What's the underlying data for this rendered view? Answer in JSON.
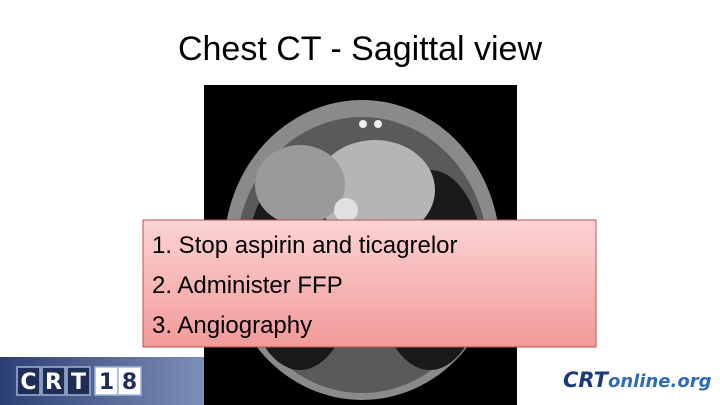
{
  "title": "Chest CT - Sagittal view",
  "callout": {
    "items": [
      "1. Stop aspirin and ticagrelor",
      "2. Administer FFP",
      "3. Angiography"
    ]
  },
  "footer": {
    "left_logo": {
      "letters": [
        "C",
        "R",
        "T",
        "1",
        "8"
      ]
    },
    "right_logo": {
      "brand": "CRT",
      "domain": "online.org"
    }
  }
}
